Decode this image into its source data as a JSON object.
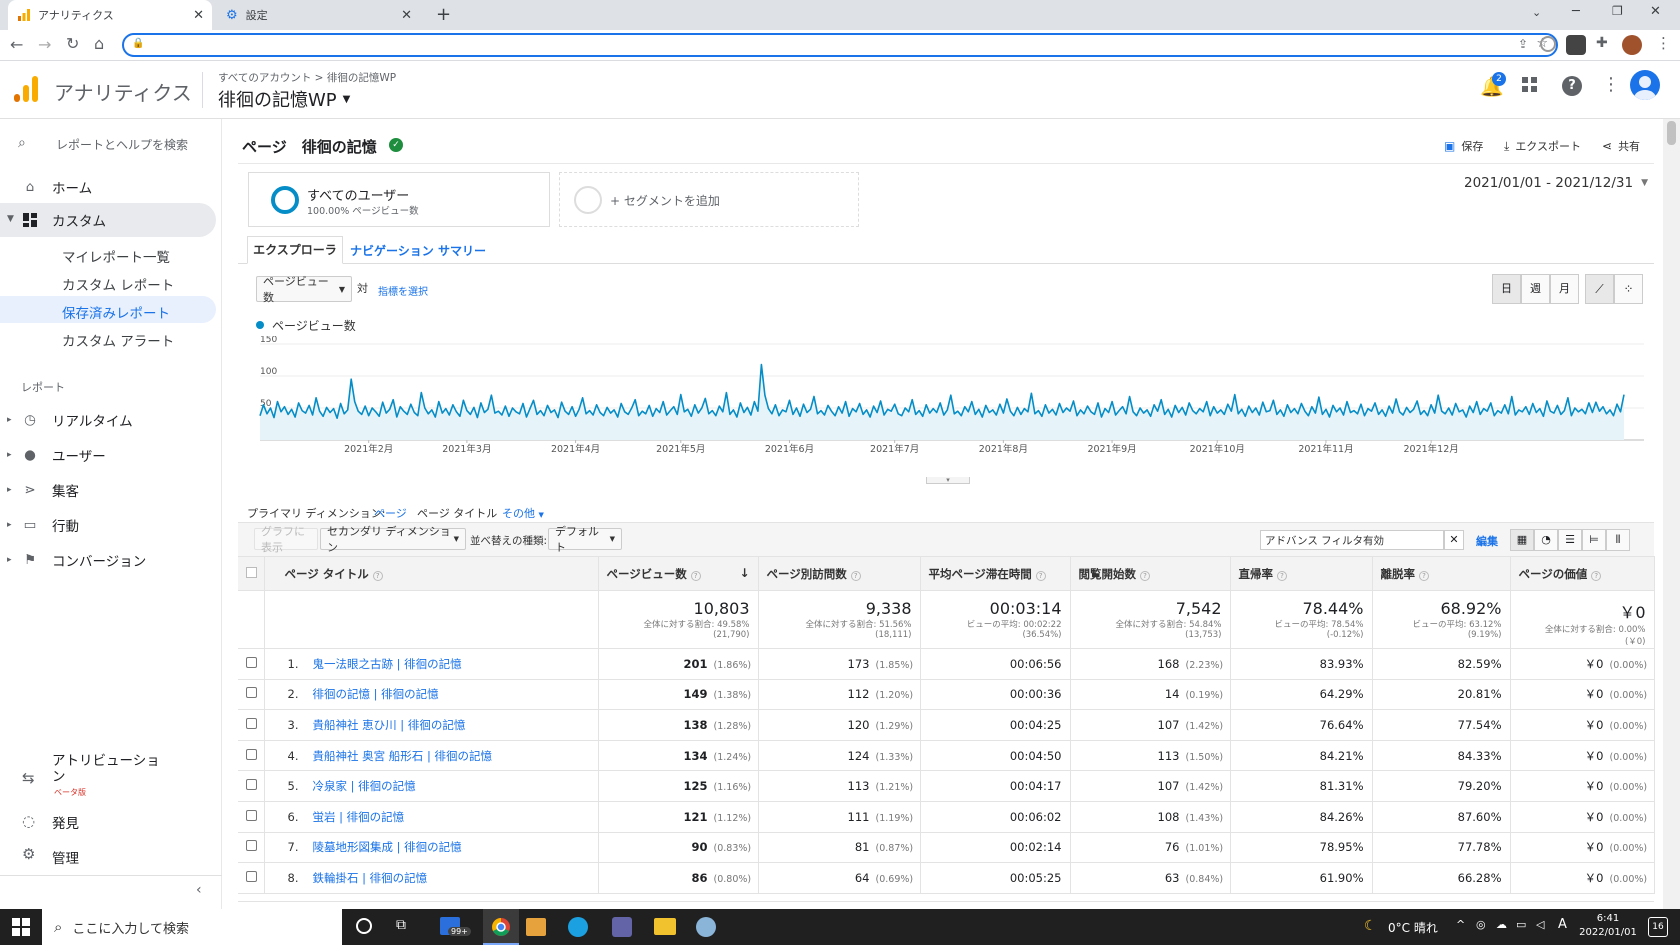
{
  "browser": {
    "tabs": [
      {
        "title": "アナリティクス",
        "active": true
      },
      {
        "title": "設定",
        "active": false
      }
    ],
    "new_tab": "+"
  },
  "ga": {
    "app_name": "アナリティクス",
    "breadcrumb": "すべてのアカウント > 徘徊の記憶WP",
    "property": "徘徊の記憶WP",
    "notif_count": "2"
  },
  "sidebar": {
    "search_placeholder": "レポートとヘルプを検索",
    "home": "ホーム",
    "custom": "カスタム",
    "custom_items": [
      "マイレポート一覧",
      "カスタム レポート",
      "保存済みレポート",
      "カスタム アラート"
    ],
    "reports_header": "レポート",
    "reports": [
      "リアルタイム",
      "ユーザー",
      "集客",
      "行動",
      "コンバージョン"
    ],
    "attribution": "アトリビューション",
    "attribution_badge": "ベータ版",
    "discover": "発見",
    "admin": "管理"
  },
  "report": {
    "title": "ページ　徘徊の記憶",
    "save": "保存",
    "export": "エクスポート",
    "share": "共有",
    "segment_name": "すべてのユーザー",
    "segment_sub": "100.00% ページビュー数",
    "add_segment": "+ セグメントを追加",
    "date_range": "2021/01/01 - 2021/12/31",
    "tab_explorer": "エクスプローラ",
    "tab_nav": "ナビゲーション サマリー",
    "metric_select": "ページビュー数",
    "vs": "対",
    "select_metric": "指標を選択",
    "day": "日",
    "week": "週",
    "month": "月",
    "legend": "ページビュー数"
  },
  "chart_data": {
    "type": "line",
    "series": [
      {
        "name": "ページビュー数",
        "values": [
          38,
          55,
          41,
          50,
          35,
          60,
          44,
          52,
          40,
          48,
          36,
          58,
          46,
          42,
          54,
          39,
          66,
          45,
          37,
          51,
          43,
          49,
          34,
          57,
          41,
          47,
          95,
          60,
          45,
          40,
          53,
          38,
          50,
          44,
          37,
          59,
          42,
          48,
          63,
          36,
          52,
          45,
          40,
          56,
          43,
          38,
          74,
          50,
          41,
          47,
          36,
          60,
          42,
          49,
          39,
          55,
          44,
          37,
          62,
          46,
          40,
          51,
          35,
          58,
          43,
          48,
          70,
          42,
          45,
          39,
          53,
          37,
          50,
          44,
          41,
          57,
          36,
          49,
          62,
          40,
          46,
          38,
          54,
          43,
          47,
          35,
          59,
          45,
          40,
          52,
          37,
          48,
          66,
          41,
          46,
          39,
          55,
          43,
          38,
          51,
          42,
          47,
          36,
          57,
          44,
          40,
          50,
          63,
          38,
          45,
          41,
          54,
          37,
          49,
          43,
          60,
          39,
          46,
          52,
          40,
          71,
          44,
          48,
          37,
          55,
          42,
          50,
          65,
          41,
          46,
          38,
          53,
          44,
          74,
          40,
          47,
          36,
          58,
          43,
          51,
          39,
          60,
          45,
          118,
          70,
          49,
          41,
          55,
          38,
          47,
          44,
          62,
          40,
          50,
          37,
          56,
          43,
          48,
          68,
          41,
          46,
          39,
          54,
          45,
          38,
          52,
          42,
          60,
          37,
          49,
          44,
          57,
          40,
          47,
          36,
          53,
          43,
          61,
          39,
          48,
          45,
          56,
          41,
          38,
          50,
          44,
          63,
          40,
          46,
          37,
          55,
          42,
          49,
          43,
          58,
          39,
          47,
          70,
          41,
          45,
          38,
          52,
          44,
          60,
          40,
          48,
          36,
          54,
          43,
          47,
          39,
          56,
          42,
          64,
          45,
          38,
          51,
          40,
          49,
          44,
          73,
          41,
          46,
          37,
          55,
          42,
          48,
          39,
          57,
          43,
          50,
          45,
          61,
          38,
          47,
          41,
          53,
          44,
          40,
          58,
          36,
          49,
          43,
          60,
          39,
          46,
          52,
          41,
          68,
          44,
          38,
          50,
          42,
          47,
          37,
          55,
          45,
          63,
          40,
          48,
          36,
          54,
          43,
          51,
          39,
          58,
          46,
          41,
          49,
          44,
          60,
          38,
          52,
          42,
          47,
          40,
          56,
          45,
          71,
          41,
          48,
          37,
          53,
          43,
          50,
          39,
          59,
          44,
          46,
          62,
          40,
          47,
          37,
          55,
          43,
          49,
          41,
          57,
          45,
          38,
          52,
          42,
          67,
          40,
          48,
          36,
          54,
          44,
          50,
          39,
          60,
          43,
          46,
          41,
          56,
          38,
          49,
          45,
          58,
          40,
          47,
          37,
          53,
          42,
          64,
          44,
          39,
          51,
          43,
          48,
          61,
          40,
          46,
          38,
          55,
          42,
          70,
          45,
          41,
          50,
          39,
          57,
          44,
          47,
          36,
          53,
          43,
          60,
          40,
          49,
          45,
          58,
          38,
          46,
          42,
          55,
          41,
          68,
          39,
          47,
          44,
          52,
          40,
          57,
          43,
          49,
          37,
          61,
          45,
          42,
          54,
          40,
          46,
          66,
          38,
          50,
          44,
          48,
          41,
          58,
          43,
          59,
          45,
          52,
          41,
          47,
          38,
          56,
          44,
          71
        ]
      }
    ],
    "x_labels": [
      "2021年2月",
      "2021年3月",
      "2021年4月",
      "2021年5月",
      "2021年6月",
      "2021年7月",
      "2021年8月",
      "2021年9月",
      "2021年10月",
      "2021年11月",
      "2021年12月"
    ],
    "y_ticks": [
      "150",
      "100",
      "50"
    ],
    "ylim": [
      0,
      150
    ]
  },
  "dimension": {
    "label": "プライマリ ディメンション:",
    "page": "ページ",
    "page_title": "ページ タイトル",
    "other": "その他",
    "graph_btn": "グラフに表示",
    "secondary": "セカンダリ ディメンション",
    "sort_label": "並べ替えの種類:",
    "sort_value": "デフォルト",
    "filter": "アドバンス フィルタ有効",
    "edit": "編集"
  },
  "table": {
    "headers": [
      "ページ タイトル",
      "ページビュー数",
      "ページ別訪問数",
      "平均ページ滞在時間",
      "閲覧開始数",
      "直帰率",
      "離脱率",
      "ページの価値"
    ],
    "totals": [
      {
        "value": "10,803",
        "sub1": "全体に対する割合: 49.58%",
        "sub2": "(21,790)"
      },
      {
        "value": "9,338",
        "sub1": "全体に対する割合: 51.56%",
        "sub2": "(18,111)"
      },
      {
        "value": "00:03:14",
        "sub1": "ビューの平均: 00:02:22",
        "sub2": "(36.54%)"
      },
      {
        "value": "7,542",
        "sub1": "全体に対する割合: 54.84%",
        "sub2": "(13,753)"
      },
      {
        "value": "78.44%",
        "sub1": "ビューの平均: 78.54%",
        "sub2": "(-0.12%)"
      },
      {
        "value": "68.92%",
        "sub1": "ビューの平均: 63.12%",
        "sub2": "(9.19%)"
      },
      {
        "value": "￥0",
        "sub1": "全体に対する割合: 0.00%",
        "sub2": "(￥0)"
      }
    ],
    "rows": [
      {
        "n": "1.",
        "title": "鬼一法眼之古跡 | 徘徊の記憶",
        "pv": "201",
        "pvp": "(1.86%)",
        "uv": "173",
        "uvp": "(1.85%)",
        "time": "00:06:56",
        "ent": "168",
        "entp": "(2.23%)",
        "bounce": "83.93%",
        "exit": "82.59%",
        "val": "￥0",
        "valp": "(0.00%)"
      },
      {
        "n": "2.",
        "title": "徘徊の記憶 | 徘徊の記憶",
        "pv": "149",
        "pvp": "(1.38%)",
        "uv": "112",
        "uvp": "(1.20%)",
        "time": "00:00:36",
        "ent": "14",
        "entp": "(0.19%)",
        "bounce": "64.29%",
        "exit": "20.81%",
        "val": "￥0",
        "valp": "(0.00%)"
      },
      {
        "n": "3.",
        "title": "貴船神社 恵ひ川 | 徘徊の記憶",
        "pv": "138",
        "pvp": "(1.28%)",
        "uv": "120",
        "uvp": "(1.29%)",
        "time": "00:04:25",
        "ent": "107",
        "entp": "(1.42%)",
        "bounce": "76.64%",
        "exit": "77.54%",
        "val": "￥0",
        "valp": "(0.00%)"
      },
      {
        "n": "4.",
        "title": "貴船神社 奥宮 船形石 | 徘徊の記憶",
        "pv": "134",
        "pvp": "(1.24%)",
        "uv": "124",
        "uvp": "(1.33%)",
        "time": "00:04:50",
        "ent": "113",
        "entp": "(1.50%)",
        "bounce": "84.21%",
        "exit": "84.33%",
        "val": "￥0",
        "valp": "(0.00%)"
      },
      {
        "n": "5.",
        "title": "冷泉家 | 徘徊の記憶",
        "pv": "125",
        "pvp": "(1.16%)",
        "uv": "113",
        "uvp": "(1.21%)",
        "time": "00:04:17",
        "ent": "107",
        "entp": "(1.42%)",
        "bounce": "81.31%",
        "exit": "79.20%",
        "val": "￥0",
        "valp": "(0.00%)"
      },
      {
        "n": "6.",
        "title": "蛍岩 | 徘徊の記憶",
        "pv": "121",
        "pvp": "(1.12%)",
        "uv": "111",
        "uvp": "(1.19%)",
        "time": "00:06:02",
        "ent": "108",
        "entp": "(1.43%)",
        "bounce": "84.26%",
        "exit": "87.60%",
        "val": "￥0",
        "valp": "(0.00%)"
      },
      {
        "n": "7.",
        "title": "陵墓地形図集成 | 徘徊の記憶",
        "pv": "90",
        "pvp": "(0.83%)",
        "uv": "81",
        "uvp": "(0.87%)",
        "time": "00:02:14",
        "ent": "76",
        "entp": "(1.01%)",
        "bounce": "78.95%",
        "exit": "77.78%",
        "val": "￥0",
        "valp": "(0.00%)"
      },
      {
        "n": "8.",
        "title": "鉄輪掛石 | 徘徊の記憶",
        "pv": "86",
        "pvp": "(0.80%)",
        "uv": "64",
        "uvp": "(0.69%)",
        "time": "00:05:25",
        "ent": "63",
        "entp": "(0.84%)",
        "bounce": "61.90%",
        "exit": "66.28%",
        "val": "￥0",
        "valp": "(0.00%)"
      }
    ]
  },
  "taskbar": {
    "search": "ここに入力して検索",
    "weather": "0°C 晴れ",
    "time": "6:41",
    "date": "2022/01/01",
    "mail_badge": "99+",
    "notif": "16",
    "ime": "A"
  },
  "colors": {
    "accent": "#1a73e8",
    "line": "#058dc7",
    "area": "#e6f4fa",
    "ga_orange": "#f9ab00",
    "ga_dark": "#e37400",
    "verified": "#1e8e3e"
  }
}
